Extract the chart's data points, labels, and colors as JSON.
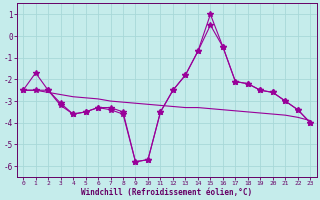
{
  "background_color": "#c5eceb",
  "grid_color": "#a8d8d8",
  "line_color": "#990099",
  "xlabel": "Windchill (Refroidissement éolien,°C)",
  "xlabel_color": "#660066",
  "tick_color": "#660066",
  "xlim_min": -0.5,
  "xlim_max": 23.5,
  "ylim_min": -6.5,
  "ylim_max": 1.5,
  "yticks": [
    1,
    0,
    -1,
    -2,
    -3,
    -4,
    -5,
    -6
  ],
  "xticks": [
    0,
    1,
    2,
    3,
    4,
    5,
    6,
    7,
    8,
    9,
    10,
    11,
    12,
    13,
    14,
    15,
    16,
    17,
    18,
    19,
    20,
    21,
    22,
    23
  ],
  "series1_x": [
    0,
    1,
    2,
    3,
    4,
    5,
    6,
    7,
    8,
    9,
    10,
    11,
    12,
    13,
    14,
    15,
    16,
    17,
    18,
    19,
    20,
    21,
    22,
    23
  ],
  "series1_y": [
    -2.5,
    -1.7,
    -2.5,
    -3.2,
    -3.6,
    -3.5,
    -3.3,
    -3.4,
    -3.6,
    -5.8,
    -5.7,
    -3.5,
    -2.5,
    -1.8,
    -0.7,
    1.0,
    -0.5,
    -2.1,
    -2.2,
    -2.5,
    -2.6,
    -3.0,
    -3.4,
    -4.0
  ],
  "series2_x": [
    0,
    1,
    2,
    3,
    4,
    5,
    6,
    7,
    8,
    9,
    10,
    11,
    12,
    13,
    14,
    15,
    16,
    17,
    18,
    19,
    20,
    21,
    22,
    23
  ],
  "series2_y": [
    -2.5,
    -2.5,
    -2.6,
    -2.7,
    -2.8,
    -2.85,
    -2.9,
    -3.0,
    -3.05,
    -3.1,
    -3.15,
    -3.2,
    -3.25,
    -3.3,
    -3.3,
    -3.35,
    -3.4,
    -3.45,
    -3.5,
    -3.55,
    -3.6,
    -3.65,
    -3.75,
    -3.9
  ],
  "series3_x": [
    0,
    1,
    2,
    3,
    4,
    5,
    6,
    7,
    8,
    9,
    10,
    11,
    12,
    13,
    14,
    15,
    16,
    17,
    18,
    19,
    20,
    21,
    22,
    23
  ],
  "series3_y": [
    -2.5,
    -2.5,
    -2.5,
    -3.1,
    -3.6,
    -3.5,
    -3.3,
    -3.3,
    -3.5,
    -5.8,
    -5.7,
    -3.5,
    -2.5,
    -1.8,
    -0.7,
    0.5,
    -0.5,
    -2.1,
    -2.2,
    -2.5,
    -2.6,
    -3.0,
    -3.4,
    -4.0
  ],
  "figwidth": 3.2,
  "figheight": 2.0,
  "dpi": 100
}
